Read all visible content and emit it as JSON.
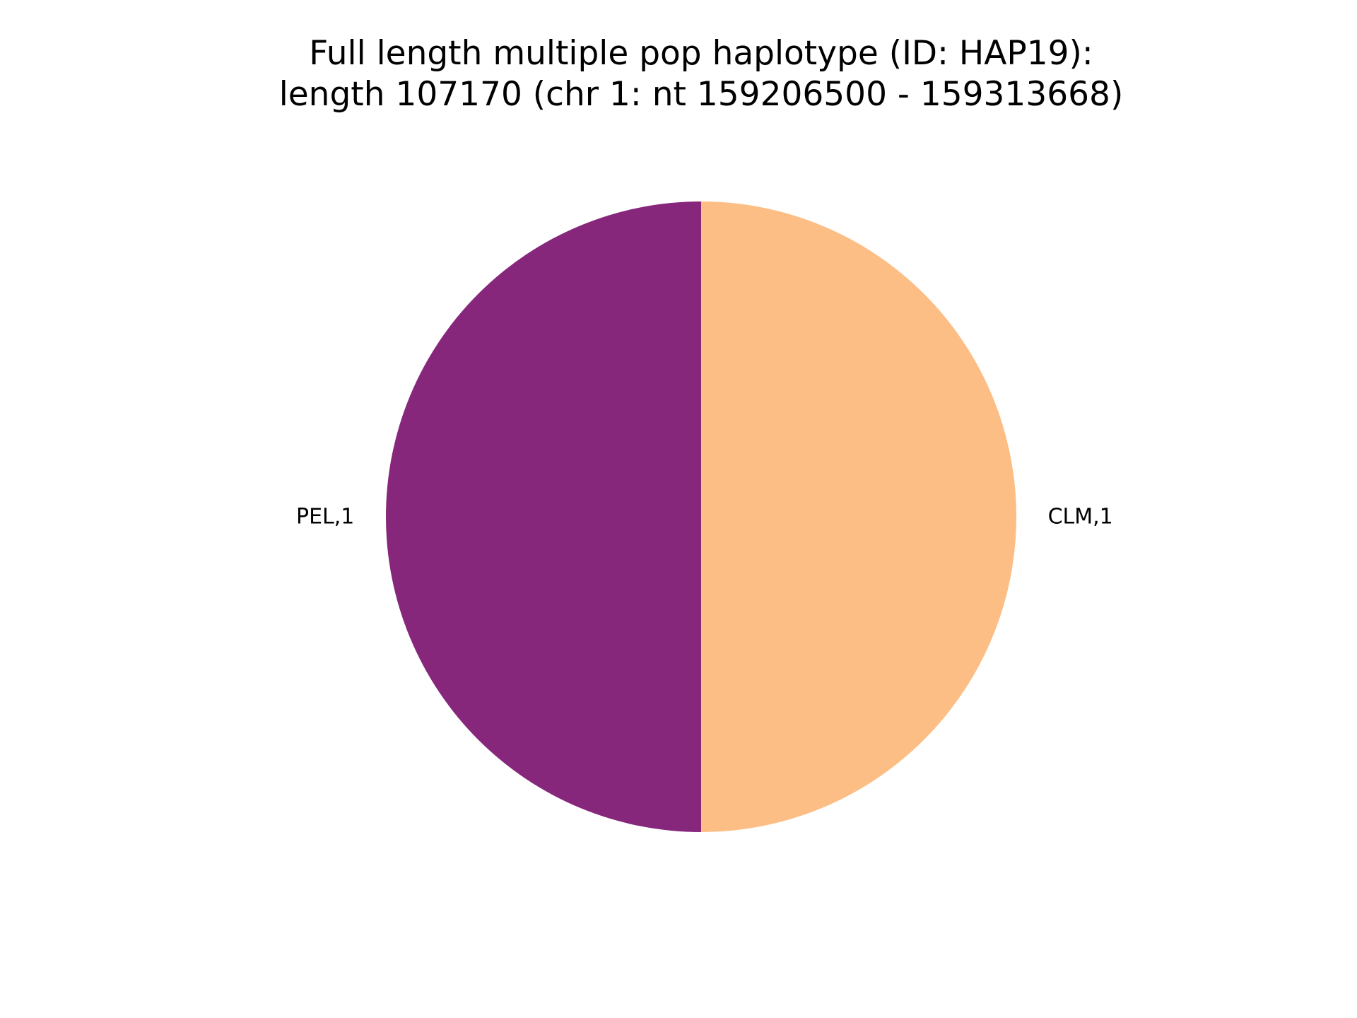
{
  "chart_data": {
    "type": "pie",
    "title_lines": [
      "Full length multiple pop haplotype (ID: HAP19):",
      "length 107170 (chr 1: nt 159206500 - 159313668)"
    ],
    "slices": [
      {
        "label": "CLM,1",
        "value": 1,
        "color": "#fdbe85"
      },
      {
        "label": "PEL,1",
        "value": 1,
        "color": "#86277c"
      }
    ],
    "start_angle_deg": 90,
    "direction": "clockwise",
    "legend": "none"
  }
}
